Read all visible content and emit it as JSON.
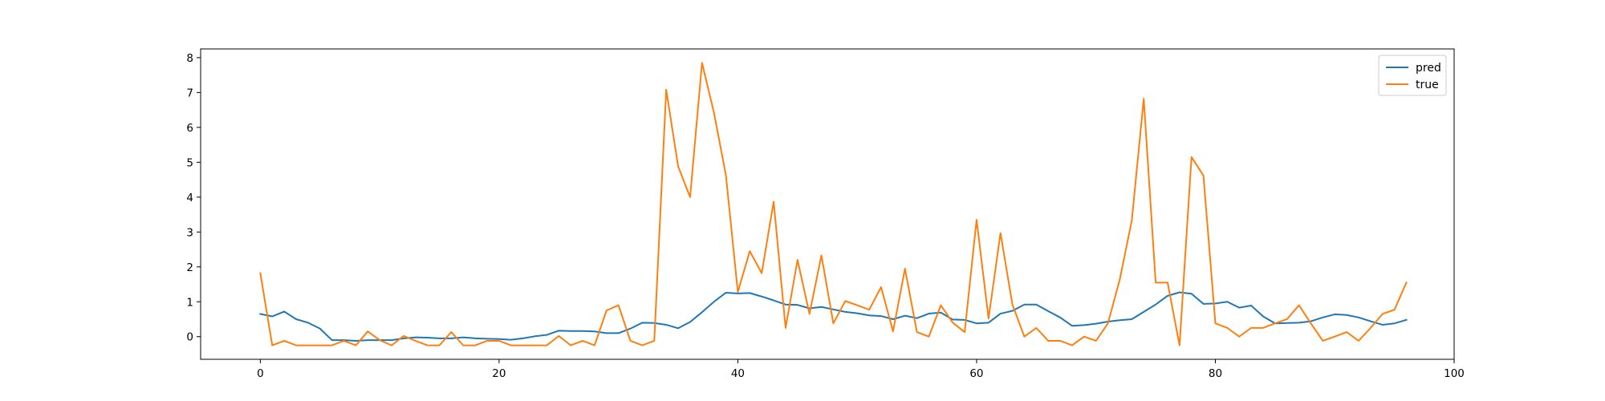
{
  "chart_data": {
    "type": "line",
    "title": "",
    "xlabel": "",
    "ylabel": "",
    "xlim": [
      -5,
      100
    ],
    "ylim": [
      -0.65,
      8.25
    ],
    "xticks": [
      0,
      20,
      40,
      60,
      80,
      100
    ],
    "yticks": [
      0,
      1,
      2,
      3,
      4,
      5,
      6,
      7,
      8
    ],
    "grid": false,
    "legend": "top-right",
    "x": [
      0,
      1,
      2,
      3,
      4,
      5,
      6,
      7,
      8,
      9,
      10,
      11,
      12,
      13,
      14,
      15,
      16,
      17,
      18,
      19,
      20,
      21,
      22,
      23,
      24,
      25,
      26,
      27,
      28,
      29,
      30,
      31,
      32,
      33,
      34,
      35,
      36,
      37,
      38,
      39,
      40,
      41,
      42,
      43,
      44,
      45,
      46,
      47,
      48,
      49,
      50,
      51,
      52,
      53,
      54,
      55,
      56,
      57,
      58,
      59,
      60,
      61,
      62,
      63,
      64,
      65,
      66,
      67,
      68,
      69,
      70,
      71,
      72,
      73,
      74,
      75,
      76,
      77,
      78,
      79,
      80,
      81,
      82,
      83,
      84,
      85,
      86,
      87,
      88,
      89,
      90,
      91,
      92,
      93,
      94,
      95,
      96
    ],
    "series": [
      {
        "name": "pred",
        "color": "#1f77b4",
        "values": [
          0.65,
          0.58,
          0.72,
          0.5,
          0.4,
          0.23,
          -0.1,
          -0.1,
          -0.12,
          -0.1,
          -0.1,
          -0.1,
          -0.05,
          -0.02,
          -0.03,
          -0.05,
          -0.05,
          -0.02,
          -0.05,
          -0.06,
          -0.07,
          -0.09,
          -0.05,
          0.01,
          0.05,
          0.17,
          0.16,
          0.16,
          0.15,
          0.1,
          0.1,
          0.23,
          0.4,
          0.39,
          0.34,
          0.24,
          0.42,
          0.7,
          1.0,
          1.26,
          1.24,
          1.25,
          1.15,
          1.04,
          0.92,
          0.91,
          0.81,
          0.85,
          0.78,
          0.71,
          0.67,
          0.61,
          0.59,
          0.5,
          0.6,
          0.53,
          0.66,
          0.69,
          0.49,
          0.48,
          0.38,
          0.4,
          0.66,
          0.74,
          0.92,
          0.92,
          0.73,
          0.55,
          0.31,
          0.33,
          0.37,
          0.43,
          0.47,
          0.5,
          0.71,
          0.92,
          1.17,
          1.27,
          1.23,
          0.94,
          0.95,
          1.0,
          0.83,
          0.89,
          0.58,
          0.38,
          0.39,
          0.4,
          0.44,
          0.55,
          0.64,
          0.62,
          0.55,
          0.44,
          0.34,
          0.38,
          0.48
        ]
      },
      {
        "name": "true",
        "color": "#ff7f0e",
        "values": [
          1.82,
          -0.25,
          -0.12,
          -0.25,
          -0.25,
          -0.25,
          -0.25,
          -0.12,
          -0.25,
          0.15,
          -0.1,
          -0.25,
          0.02,
          -0.12,
          -0.25,
          -0.25,
          0.13,
          -0.25,
          -0.25,
          -0.12,
          -0.12,
          -0.25,
          -0.25,
          -0.25,
          -0.25,
          0.02,
          -0.25,
          -0.12,
          -0.25,
          0.75,
          0.9,
          -0.12,
          -0.25,
          -0.12,
          7.08,
          4.88,
          4.0,
          7.85,
          6.42,
          4.63,
          1.28,
          2.45,
          1.82,
          3.87,
          0.25,
          2.2,
          0.65,
          2.33,
          0.38,
          1.02,
          0.9,
          0.77,
          1.42,
          0.15,
          1.95,
          0.13,
          0.0,
          0.9,
          0.4,
          0.13,
          3.35,
          0.52,
          2.97,
          0.92,
          0.0,
          0.25,
          -0.12,
          -0.12,
          -0.25,
          0.0,
          -0.12,
          0.38,
          1.65,
          3.33,
          6.82,
          1.55,
          1.55,
          -0.25,
          5.15,
          4.62,
          0.38,
          0.25,
          0.0,
          0.25,
          0.25,
          0.38,
          0.5,
          0.9,
          0.38,
          -0.12,
          0.0,
          0.13,
          -0.12,
          0.25,
          0.65,
          0.77,
          1.55
        ]
      }
    ]
  }
}
